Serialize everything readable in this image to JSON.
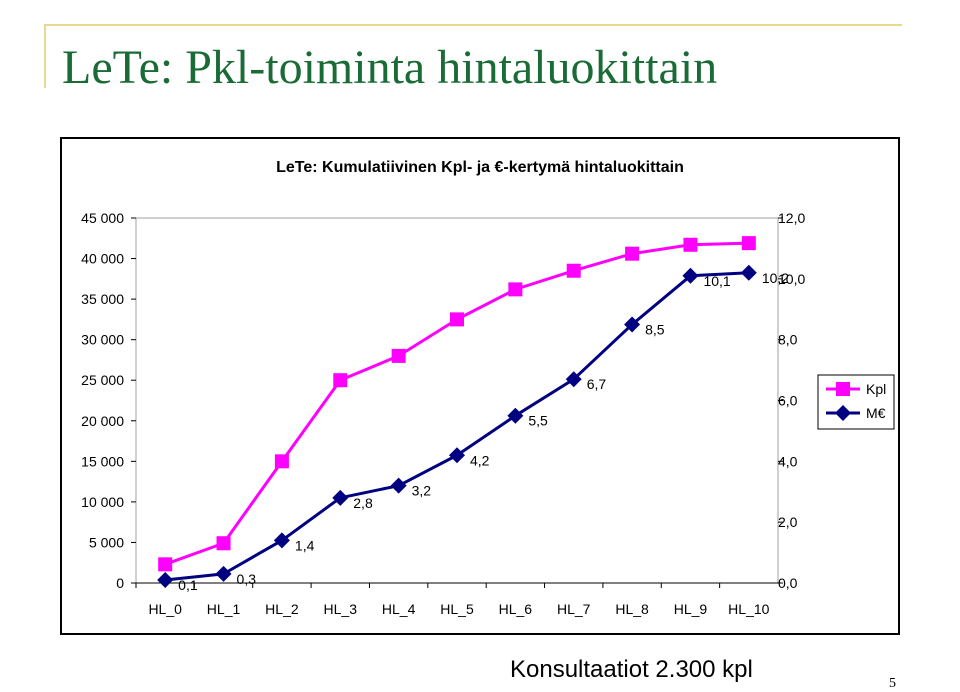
{
  "slide": {
    "title": "LeTe: Pkl-toiminta hintaluokittain",
    "footer": "Konsultaatiot 2.300 kpl",
    "page_number": "5"
  },
  "chart_data": {
    "type": "line",
    "title": "LeTe: Kumulatiivinen Kpl- ja €-kertymä hintaluokittain",
    "categories": [
      "HL_0",
      "HL_1",
      "HL_2",
      "HL_3",
      "HL_4",
      "HL_5",
      "HL_6",
      "HL_7",
      "HL_8",
      "HL_9",
      "HL_10"
    ],
    "left_axis": {
      "range": [
        0,
        45000
      ],
      "ticks": [
        0,
        5000,
        10000,
        15000,
        20000,
        25000,
        30000,
        35000,
        40000,
        45000
      ],
      "tick_labels": [
        "0",
        "5 000",
        "10 000",
        "15 000",
        "20 000",
        "25 000",
        "30 000",
        "35 000",
        "40 000",
        "45 000"
      ]
    },
    "right_axis": {
      "range": [
        0,
        12
      ],
      "ticks": [
        0,
        2,
        4,
        6,
        8,
        10,
        12
      ],
      "tick_labels": [
        "0,0",
        "2,0",
        "4,0",
        "6,0",
        "8,0",
        "10,0",
        "12,0"
      ]
    },
    "series": [
      {
        "name": "Kpl",
        "axis": "left",
        "marker": "square",
        "color": "#ff00ff",
        "values": [
          2300,
          4900,
          15000,
          25000,
          28000,
          32500,
          36200,
          38500,
          40600,
          41700,
          41900
        ]
      },
      {
        "name": "M€",
        "axis": "right",
        "marker": "diamond",
        "color": "#000080",
        "values": [
          0.1,
          0.3,
          1.4,
          2.8,
          3.2,
          4.2,
          5.5,
          6.7,
          8.5,
          10.1,
          10.2
        ],
        "data_labels": [
          "0,1",
          "0,3",
          "1,4",
          "2,8",
          "3,2",
          "4,2",
          "5,5",
          "6,7",
          "8,5",
          "10,1",
          "10,2"
        ]
      }
    ],
    "legend": {
      "placement": "right",
      "entries": [
        "Kpl",
        "M€"
      ]
    },
    "grid": false,
    "plot_background": "#ffffff"
  }
}
